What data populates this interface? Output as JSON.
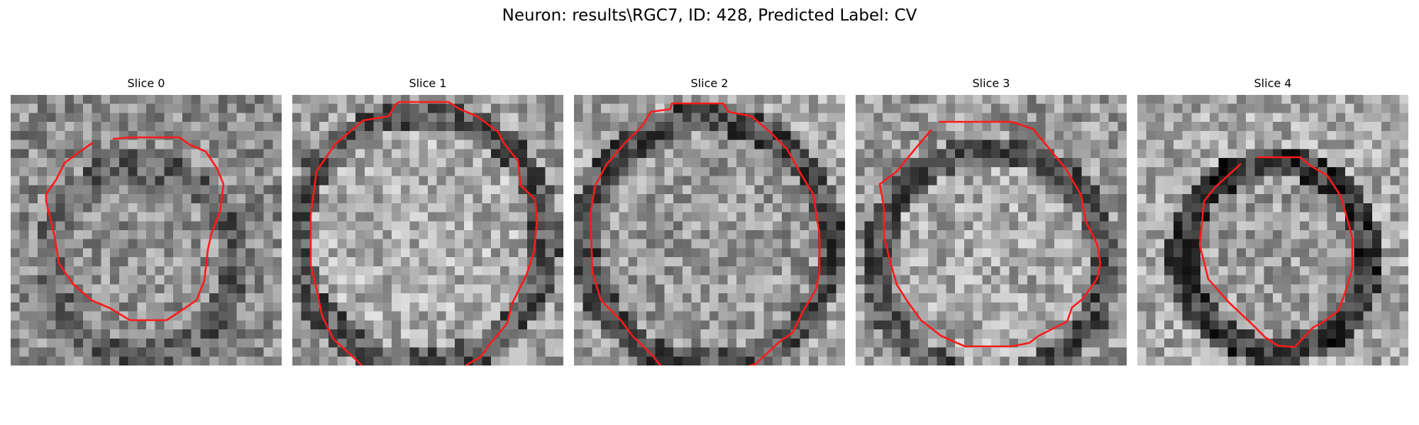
{
  "figure": {
    "title": "Neuron: results\\RGC7, ID: 428, Predicted Label: CV",
    "panels": [
      {
        "title": "Slice 0"
      },
      {
        "title": "Slice 1"
      },
      {
        "title": "Slice 2"
      },
      {
        "title": "Slice 3"
      },
      {
        "title": "Slice 4"
      }
    ]
  },
  "colors": {
    "contour": "#ff1a1a",
    "colormap": "gray"
  }
}
